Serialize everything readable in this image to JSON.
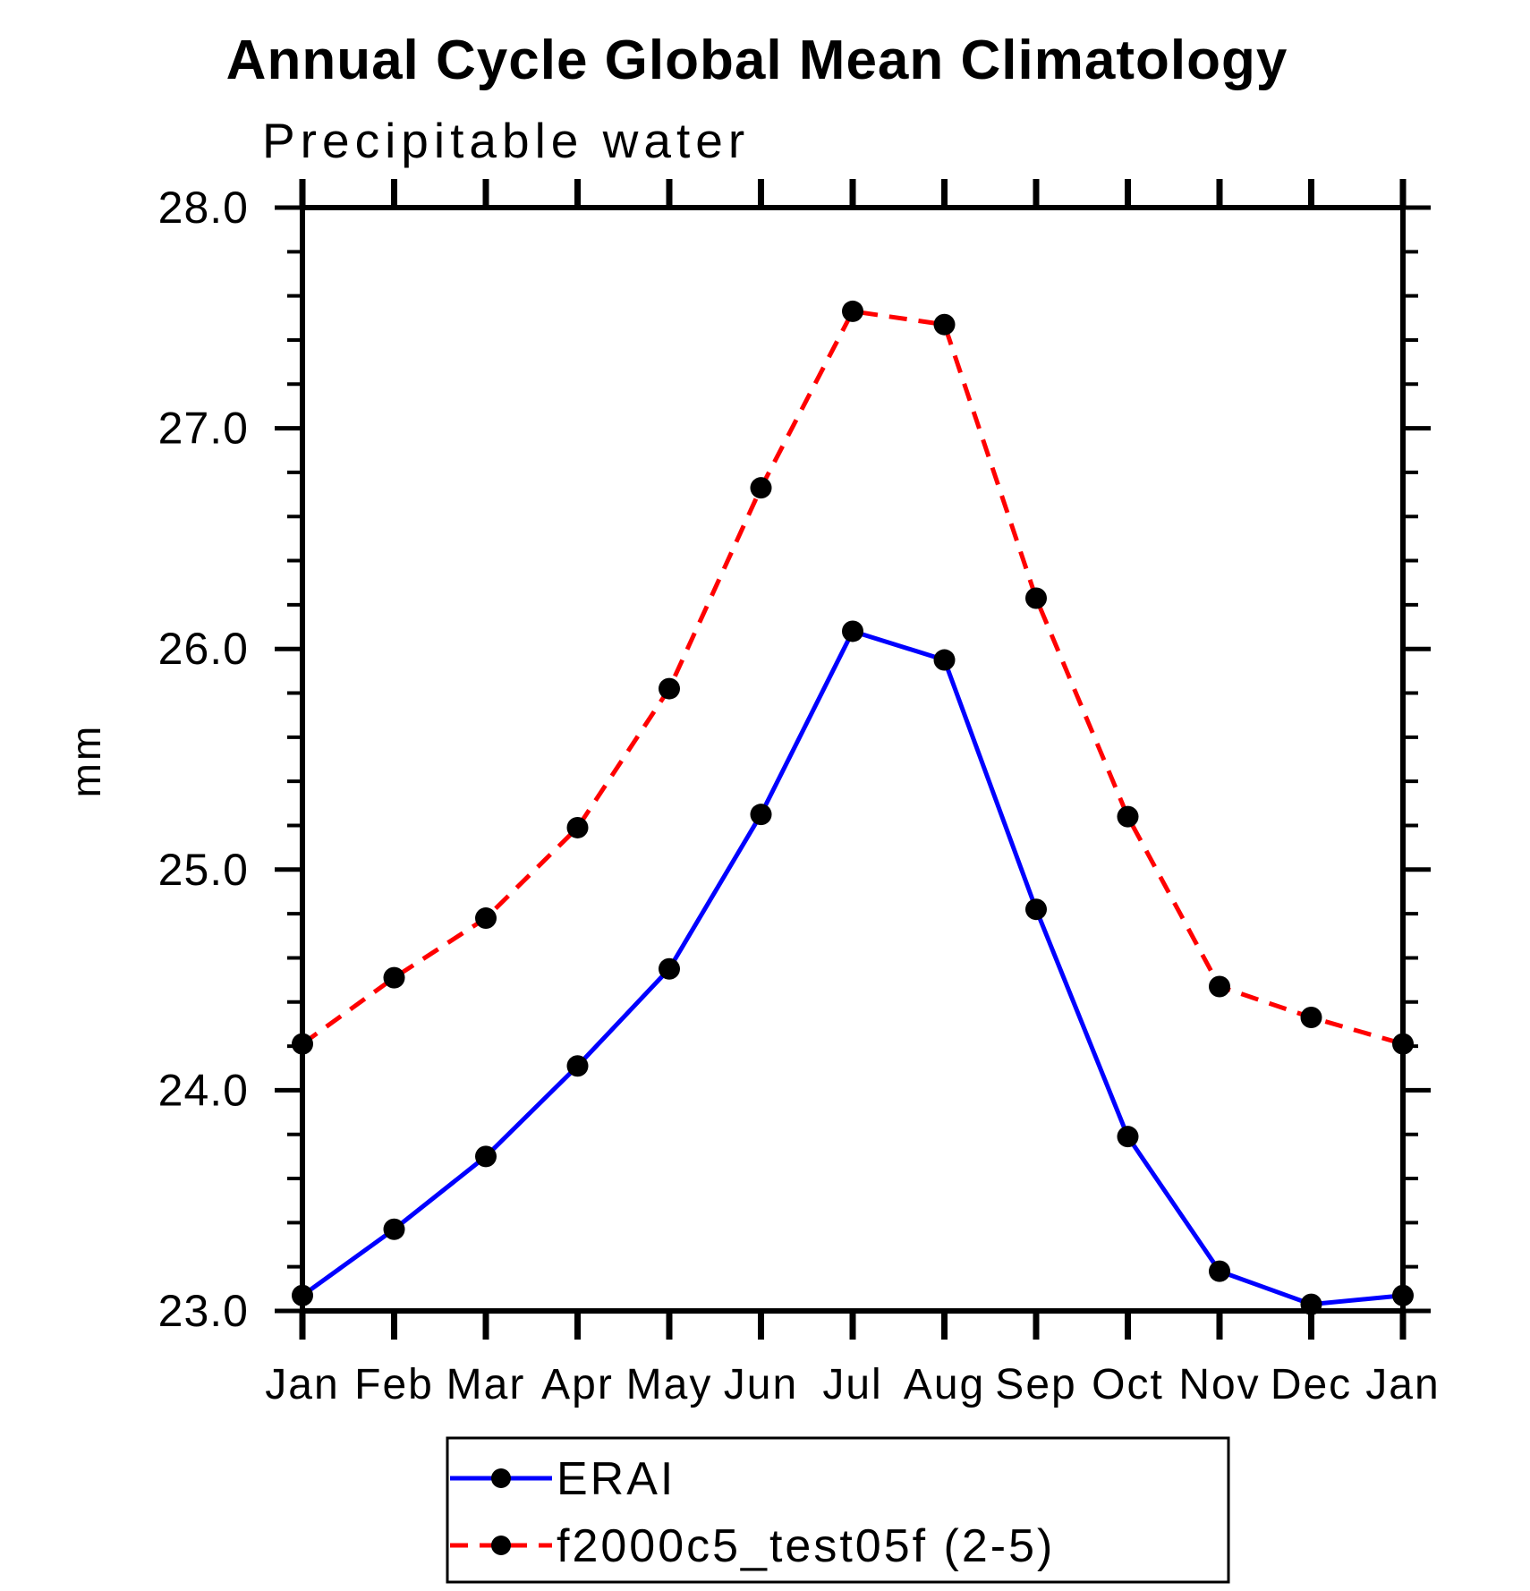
{
  "chart_data": {
    "type": "line",
    "title": "Annual Cycle Global Mean Climatology",
    "subtitle": "Precipitable water",
    "ylabel": "mm",
    "xlabel": "",
    "categories": [
      "Jan",
      "Feb",
      "Mar",
      "Apr",
      "May",
      "Jun",
      "Jul",
      "Aug",
      "Sep",
      "Oct",
      "Nov",
      "Dec",
      "Jan"
    ],
    "ylim": [
      23.0,
      28.0
    ],
    "ytick_major_step": 1.0,
    "ytick_minor_step": 0.2,
    "ytick_labels": [
      "23.0",
      "24.0",
      "25.0",
      "26.0",
      "27.0",
      "28.0"
    ],
    "grid": false,
    "legend_position": "bottom-center",
    "axis_color": "#000000",
    "marker_shape": "filled-circle",
    "series": [
      {
        "name": "ERAI",
        "line_style": "solid",
        "color": "#0000ff",
        "marker_color": "#000000",
        "values": [
          23.07,
          23.37,
          23.7,
          24.11,
          24.55,
          25.25,
          26.08,
          25.95,
          24.82,
          23.79,
          23.18,
          23.03,
          23.07
        ]
      },
      {
        "name": "f2000c5_test05f (2-5)",
        "line_style": "dashed",
        "color": "#ff0000",
        "marker_color": "#000000",
        "values": [
          24.21,
          24.51,
          24.78,
          25.19,
          25.82,
          26.73,
          27.53,
          27.47,
          26.23,
          25.24,
          24.47,
          24.33,
          24.21
        ]
      }
    ]
  }
}
